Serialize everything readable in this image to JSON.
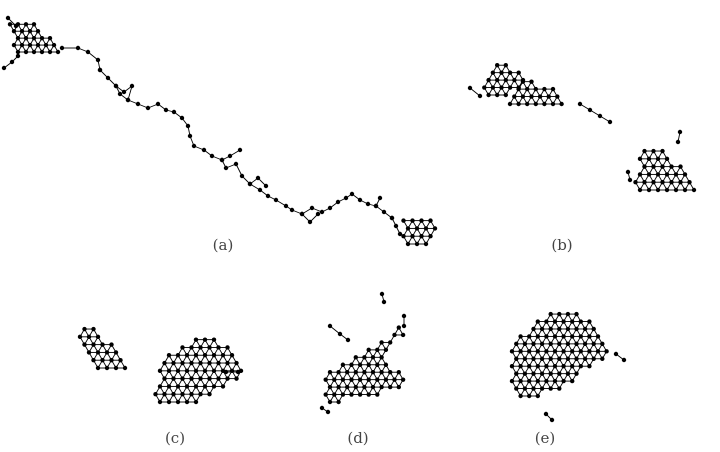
{
  "panels": [
    {
      "id": "a",
      "caption": "(a)"
    },
    {
      "id": "b",
      "caption": "(b)"
    },
    {
      "id": "c",
      "caption": "(c)"
    },
    {
      "id": "d",
      "caption": "(d)"
    },
    {
      "id": "e",
      "caption": "(e)"
    }
  ],
  "style": {
    "node_color": "#000000",
    "edge_color": "#000000"
  }
}
